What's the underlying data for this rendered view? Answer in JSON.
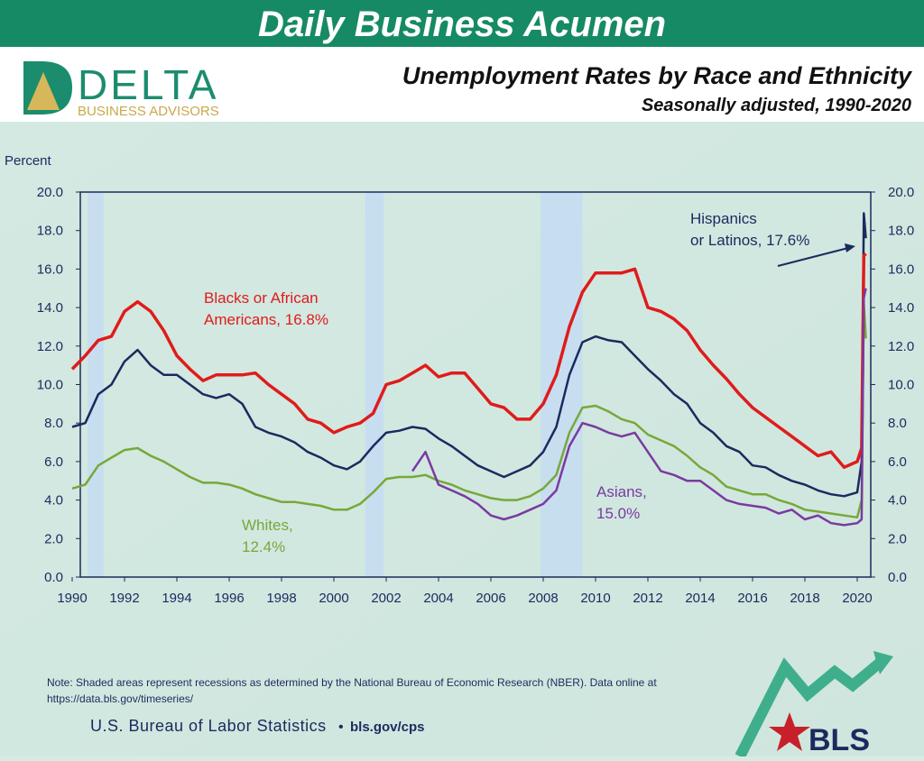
{
  "banner": {
    "title": "Daily Business Acumen",
    "color": "#168a64"
  },
  "logo": {
    "name": "DELTA",
    "tagline": "BUSINESS ADVISORS"
  },
  "chart_data": {
    "type": "line",
    "title": "Unemployment Rates by Race and Ethnicity",
    "subtitle": "Seasonally adjusted, 1990-2020",
    "ylabel": "Percent",
    "xlim": [
      1990,
      2020.5
    ],
    "ylim": [
      0,
      20
    ],
    "x_ticks": [
      "1990",
      "1992",
      "1994",
      "1996",
      "1998",
      "2000",
      "2002",
      "2004",
      "2006",
      "2008",
      "2010",
      "2012",
      "2014",
      "2016",
      "2018",
      "2020"
    ],
    "y_ticks": [
      "0.0",
      "2.0",
      "4.0",
      "6.0",
      "8.0",
      "10.0",
      "12.0",
      "14.0",
      "16.0",
      "18.0",
      "20.0"
    ],
    "grid": false,
    "recessions": [
      [
        1990.6,
        1991.2
      ],
      [
        2001.2,
        2001.9
      ],
      [
        2007.9,
        2009.5
      ]
    ],
    "series": [
      {
        "name": "Whites",
        "label": [
          "Whites,",
          "12.4%"
        ],
        "color": "#77a83a",
        "x": [
          1990,
          1990.5,
          1991,
          1991.5,
          1992,
          1992.5,
          1993,
          1993.5,
          1994,
          1994.5,
          1995,
          1995.5,
          1996,
          1996.5,
          1997,
          1997.5,
          1998,
          1998.5,
          1999,
          1999.5,
          2000,
          2000.5,
          2001,
          2001.5,
          2002,
          2002.5,
          2003,
          2003.5,
          2004,
          2004.5,
          2005,
          2005.5,
          2006,
          2006.5,
          2007,
          2007.5,
          2008,
          2008.5,
          2009,
          2009.5,
          2010,
          2010.5,
          2011,
          2011.5,
          2012,
          2012.5,
          2013,
          2013.5,
          2014,
          2014.5,
          2015,
          2015.5,
          2016,
          2016.5,
          2017,
          2017.5,
          2018,
          2018.5,
          2019,
          2019.5,
          2020,
          2020.17,
          2020.25,
          2020.33
        ],
        "y": [
          4.6,
          4.8,
          5.8,
          6.2,
          6.6,
          6.7,
          6.3,
          6.0,
          5.6,
          5.2,
          4.9,
          4.9,
          4.8,
          4.6,
          4.3,
          4.1,
          3.9,
          3.9,
          3.8,
          3.7,
          3.5,
          3.5,
          3.8,
          4.4,
          5.1,
          5.2,
          5.2,
          5.3,
          5.0,
          4.8,
          4.5,
          4.3,
          4.1,
          4.0,
          4.0,
          4.2,
          4.6,
          5.3,
          7.5,
          8.8,
          8.9,
          8.6,
          8.2,
          8.0,
          7.4,
          7.1,
          6.8,
          6.3,
          5.7,
          5.3,
          4.7,
          4.5,
          4.3,
          4.3,
          4.0,
          3.8,
          3.5,
          3.4,
          3.3,
          3.2,
          3.1,
          4.0,
          14.2,
          12.4
        ]
      },
      {
        "name": "Hispanics or Latinos",
        "label": [
          "Hispanics",
          "or Latinos, 17.6%"
        ],
        "color": "#1b2a5e",
        "x": [
          1990,
          1990.5,
          1991,
          1991.5,
          1992,
          1992.5,
          1993,
          1993.5,
          1994,
          1994.5,
          1995,
          1995.5,
          1996,
          1996.5,
          1997,
          1997.5,
          1998,
          1998.5,
          1999,
          1999.5,
          2000,
          2000.5,
          2001,
          2001.5,
          2002,
          2002.5,
          2003,
          2003.5,
          2004,
          2004.5,
          2005,
          2005.5,
          2006,
          2006.5,
          2007,
          2007.5,
          2008,
          2008.5,
          2009,
          2009.5,
          2010,
          2010.5,
          2011,
          2011.5,
          2012,
          2012.5,
          2013,
          2013.5,
          2014,
          2014.5,
          2015,
          2015.5,
          2016,
          2016.5,
          2017,
          2017.5,
          2018,
          2018.5,
          2019,
          2019.5,
          2020,
          2020.17,
          2020.25,
          2020.33
        ],
        "y": [
          7.8,
          8.0,
          9.5,
          10.0,
          11.2,
          11.8,
          11.0,
          10.5,
          10.5,
          10.0,
          9.5,
          9.3,
          9.5,
          9.0,
          7.8,
          7.5,
          7.3,
          7.0,
          6.5,
          6.2,
          5.8,
          5.6,
          6.0,
          6.8,
          7.5,
          7.6,
          7.8,
          7.7,
          7.2,
          6.8,
          6.3,
          5.8,
          5.5,
          5.2,
          5.5,
          5.8,
          6.5,
          7.8,
          10.5,
          12.2,
          12.5,
          12.3,
          12.2,
          11.5,
          10.8,
          10.2,
          9.5,
          9.0,
          8.0,
          7.5,
          6.8,
          6.5,
          5.8,
          5.7,
          5.3,
          5.0,
          4.8,
          4.5,
          4.3,
          4.2,
          4.4,
          6.0,
          18.9,
          17.6
        ]
      },
      {
        "name": "Blacks or African Americans",
        "label": [
          "Blacks or African",
          "Americans, 16.8%"
        ],
        "color": "#e01b1b",
        "x": [
          1990,
          1990.5,
          1991,
          1991.5,
          1992,
          1992.5,
          1993,
          1993.5,
          1994,
          1994.5,
          1995,
          1995.5,
          1996,
          1996.5,
          1997,
          1997.5,
          1998,
          1998.5,
          1999,
          1999.5,
          2000,
          2000.5,
          2001,
          2001.5,
          2002,
          2002.5,
          2003,
          2003.5,
          2004,
          2004.5,
          2005,
          2005.5,
          2006,
          2006.5,
          2007,
          2007.5,
          2008,
          2008.5,
          2009,
          2009.5,
          2010,
          2010.5,
          2011,
          2011.5,
          2012,
          2012.5,
          2013,
          2013.5,
          2014,
          2014.5,
          2015,
          2015.5,
          2016,
          2016.5,
          2017,
          2017.5,
          2018,
          2018.5,
          2019,
          2019.5,
          2020,
          2020.17,
          2020.25,
          2020.33
        ],
        "y": [
          10.8,
          11.5,
          12.3,
          12.5,
          13.8,
          14.3,
          13.8,
          12.8,
          11.5,
          10.8,
          10.2,
          10.5,
          10.5,
          10.5,
          10.6,
          10.0,
          9.5,
          9.0,
          8.2,
          8.0,
          7.5,
          7.8,
          8.0,
          8.5,
          10.0,
          10.2,
          10.6,
          11.0,
          10.4,
          10.6,
          10.6,
          9.8,
          9.0,
          8.8,
          8.2,
          8.2,
          9.0,
          10.5,
          13.0,
          14.8,
          15.8,
          15.8,
          15.8,
          16.0,
          14.0,
          13.8,
          13.4,
          12.8,
          11.8,
          11.0,
          10.3,
          9.5,
          8.8,
          8.3,
          7.8,
          7.3,
          6.8,
          6.3,
          6.5,
          5.7,
          6.0,
          6.7,
          16.7,
          16.8
        ]
      },
      {
        "name": "Asians",
        "label": [
          "Asians,",
          "15.0%"
        ],
        "color": "#7a3aa0",
        "x": [
          2003,
          2003.5,
          2004,
          2004.5,
          2005,
          2005.5,
          2006,
          2006.5,
          2007,
          2007.5,
          2008,
          2008.5,
          2009,
          2009.5,
          2010,
          2010.5,
          2011,
          2011.5,
          2012,
          2012.5,
          2013,
          2013.5,
          2014,
          2014.5,
          2015,
          2015.5,
          2016,
          2016.5,
          2017,
          2017.5,
          2018,
          2018.5,
          2019,
          2019.5,
          2020,
          2020.17,
          2020.25,
          2020.33
        ],
        "y": [
          5.5,
          6.5,
          4.8,
          4.5,
          4.2,
          3.8,
          3.2,
          3.0,
          3.2,
          3.5,
          3.8,
          4.5,
          6.8,
          8.0,
          7.8,
          7.5,
          7.3,
          7.5,
          6.5,
          5.5,
          5.3,
          5.0,
          5.0,
          4.5,
          4.0,
          3.8,
          3.7,
          3.6,
          3.3,
          3.5,
          3.0,
          3.2,
          2.8,
          2.7,
          2.8,
          3.0,
          14.5,
          15.0
        ]
      }
    ]
  },
  "footer": {
    "note_line1": "Note: Shaded areas represent recessions as determined by the National Bureau of Economic Research (NBER).  Data online at",
    "note_line2": "https://data.bls.gov/timeseries/",
    "source": "U.S. Bureau of Labor Statistics",
    "source_sep": "•",
    "source_url": "bls.gov/cps",
    "bls_logo": "BLS"
  }
}
